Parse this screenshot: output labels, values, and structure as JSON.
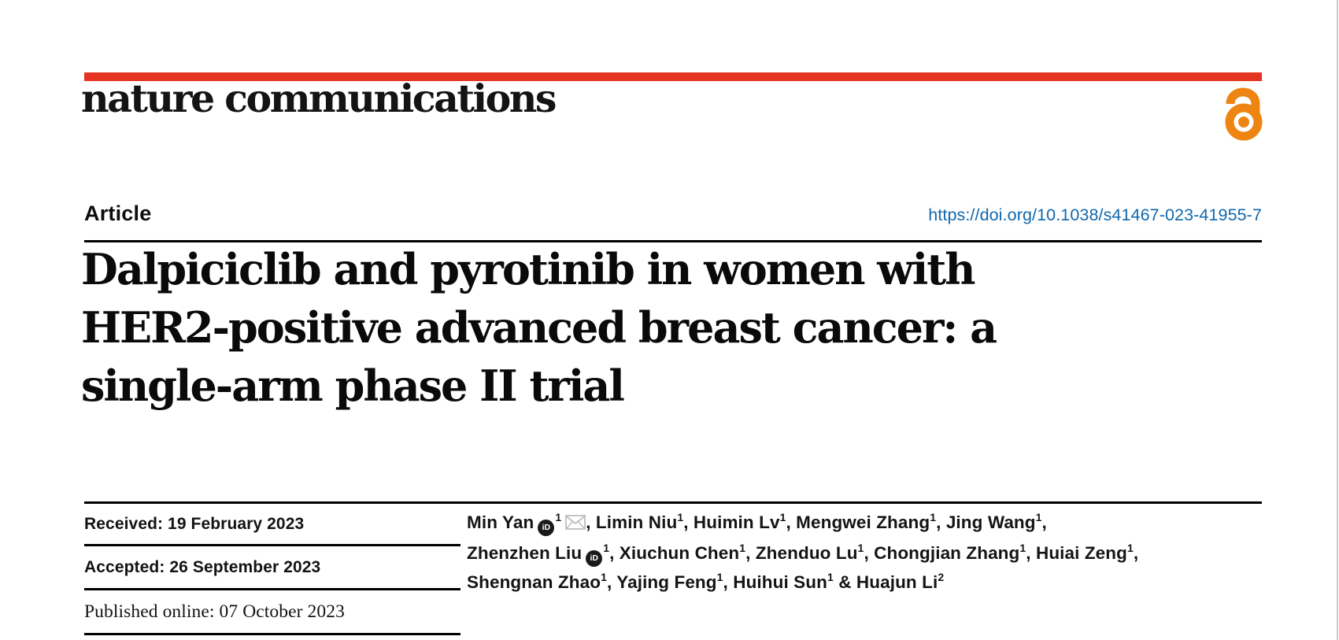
{
  "page": {
    "brand_color": "#e63423",
    "open_access_color": "#ee8512",
    "link_color": "#1068ae"
  },
  "header": {
    "journal_name": "nature communications",
    "open_access_icon": "open-access-padlock-icon"
  },
  "article_meta": {
    "kind_label": "Article",
    "doi_url": "https://doi.org/10.1038/s41467-023-41955-7"
  },
  "title": {
    "lines": [
      "Dalpiciclib and pyrotinib in women with",
      "HER2-positive advanced breast cancer: a",
      "single-arm phase II trial"
    ]
  },
  "dates": {
    "received": "Received: 19 February 2023",
    "accepted": "Accepted: 26 September 2023",
    "published": "Published online: 07 October 2023"
  },
  "authors": {
    "lines": [
      [
        {
          "name": "Min Yan",
          "orcid": true,
          "sup": "1",
          "email": true,
          "sep": ", "
        },
        {
          "name": "Limin Niu",
          "sup": "1",
          "sep": ", "
        },
        {
          "name": "Huimin Lv",
          "sup": "1",
          "sep": ", "
        },
        {
          "name": "Mengwei Zhang",
          "sup": "1",
          "sep": ", "
        },
        {
          "name": "Jing Wang",
          "sup": "1",
          "sep": ","
        }
      ],
      [
        {
          "name": "Zhenzhen Liu",
          "orcid": true,
          "sup": "1",
          "sep": ", "
        },
        {
          "name": "Xiuchun Chen",
          "sup": "1",
          "sep": ", "
        },
        {
          "name": "Zhenduo Lu",
          "sup": "1",
          "sep": ", "
        },
        {
          "name": "Chongjian Zhang",
          "sup": "1",
          "sep": ", "
        },
        {
          "name": "Huiai Zeng",
          "sup": "1",
          "sep": ","
        }
      ],
      [
        {
          "name": "Shengnan Zhao",
          "sup": "1",
          "sep": ", "
        },
        {
          "name": "Yajing Feng",
          "sup": "1",
          "sep": ", "
        },
        {
          "name": "Huihui Sun",
          "sup": "1",
          "sep": " & "
        },
        {
          "name": "Huajun Li",
          "sup": "2",
          "sep": ""
        }
      ]
    ]
  }
}
